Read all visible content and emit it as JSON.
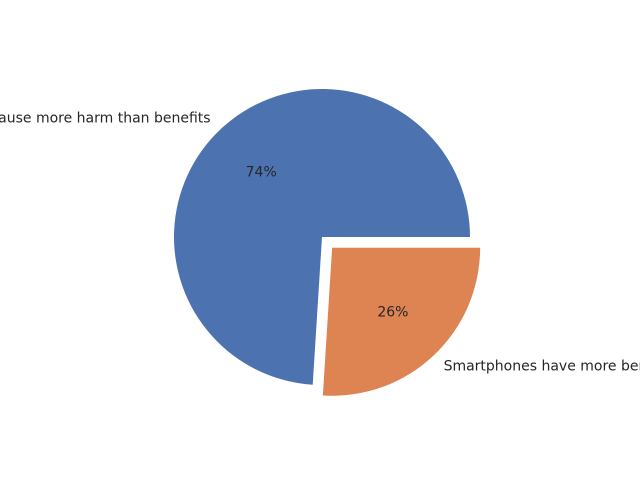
{
  "chart_data": {
    "type": "pie",
    "categories": [
      "Smartphones cause more harm than benefits",
      "Smartphones have more benefits than harm"
    ],
    "values": [
      74,
      26
    ],
    "percent_labels": [
      "74%",
      "26%"
    ],
    "colors": [
      "#4c72b0",
      "#dd8452"
    ],
    "exploded": [
      false,
      true
    ],
    "legend": "none",
    "grid": false
  }
}
